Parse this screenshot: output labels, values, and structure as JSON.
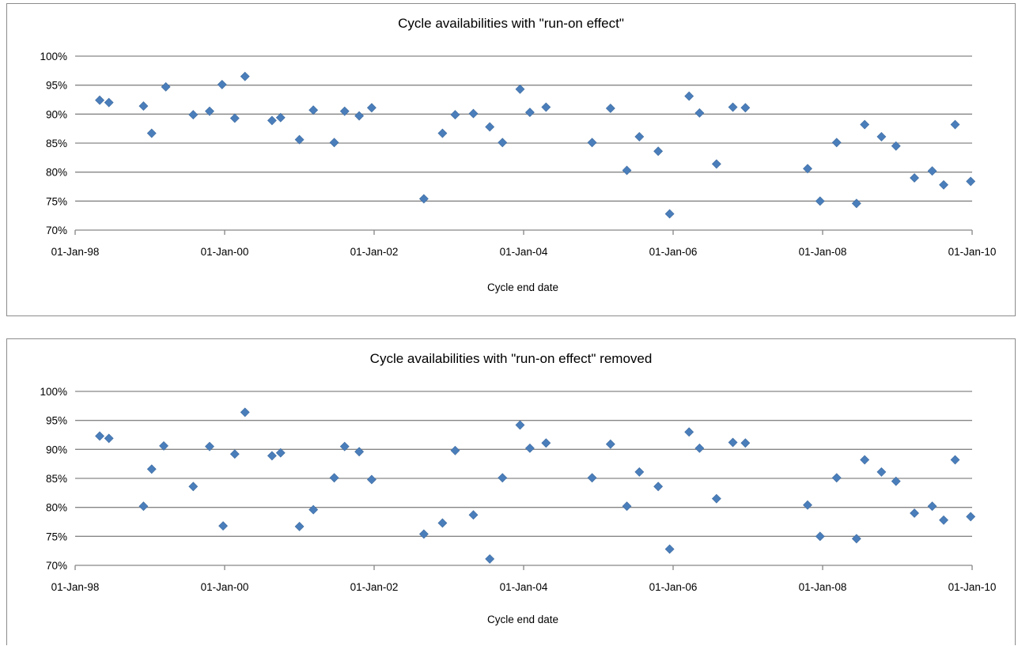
{
  "chart_data": [
    {
      "type": "scatter",
      "title": "Cycle availabilities with \"run-on effect\"",
      "xlabel": "Cycle end date",
      "ylabel": "",
      "xlim": [
        "1998-01-01",
        "2010-01-01"
      ],
      "ylim": [
        0.7,
        1.0
      ],
      "y_ticks": [
        "70%",
        "75%",
        "80%",
        "85%",
        "90%",
        "95%",
        "100%"
      ],
      "x_ticks": [
        "01-Jan-98",
        "01-Jan-00",
        "01-Jan-02",
        "01-Jan-04",
        "01-Jan-06",
        "01-Jan-08",
        "01-Jan-10"
      ],
      "grid": "horizontal",
      "legend": "none",
      "color": "#4a7ebb",
      "points": [
        {
          "x": "1998-05-01",
          "y": 0.924
        },
        {
          "x": "1998-06-15",
          "y": 0.92
        },
        {
          "x": "1998-12-01",
          "y": 0.914
        },
        {
          "x": "1999-01-10",
          "y": 0.867
        },
        {
          "x": "1999-03-20",
          "y": 0.947
        },
        {
          "x": "1999-08-01",
          "y": 0.899
        },
        {
          "x": "1999-10-20",
          "y": 0.905
        },
        {
          "x": "1999-12-20",
          "y": 0.951
        },
        {
          "x": "2000-02-20",
          "y": 0.893
        },
        {
          "x": "2000-04-10",
          "y": 0.965
        },
        {
          "x": "2000-08-20",
          "y": 0.889
        },
        {
          "x": "2000-10-01",
          "y": 0.894
        },
        {
          "x": "2001-01-01",
          "y": 0.856
        },
        {
          "x": "2001-03-10",
          "y": 0.907
        },
        {
          "x": "2001-06-20",
          "y": 0.851
        },
        {
          "x": "2001-08-10",
          "y": 0.905
        },
        {
          "x": "2001-10-20",
          "y": 0.897
        },
        {
          "x": "2001-12-20",
          "y": 0.911
        },
        {
          "x": "2002-09-01",
          "y": 0.754
        },
        {
          "x": "2002-12-01",
          "y": 0.867
        },
        {
          "x": "2003-02-01",
          "y": 0.899
        },
        {
          "x": "2003-05-01",
          "y": 0.901
        },
        {
          "x": "2003-07-20",
          "y": 0.878
        },
        {
          "x": "2003-09-20",
          "y": 0.851
        },
        {
          "x": "2003-12-15",
          "y": 0.943
        },
        {
          "x": "2004-02-01",
          "y": 0.903
        },
        {
          "x": "2004-04-20",
          "y": 0.912
        },
        {
          "x": "2004-12-01",
          "y": 0.851
        },
        {
          "x": "2005-03-01",
          "y": 0.91
        },
        {
          "x": "2005-05-20",
          "y": 0.803
        },
        {
          "x": "2005-07-20",
          "y": 0.861
        },
        {
          "x": "2005-10-20",
          "y": 0.836
        },
        {
          "x": "2005-12-15",
          "y": 0.728
        },
        {
          "x": "2006-03-20",
          "y": 0.931
        },
        {
          "x": "2006-05-10",
          "y": 0.902
        },
        {
          "x": "2006-08-01",
          "y": 0.814
        },
        {
          "x": "2006-10-20",
          "y": 0.912
        },
        {
          "x": "2006-12-20",
          "y": 0.911
        },
        {
          "x": "2007-10-20",
          "y": 0.806
        },
        {
          "x": "2007-12-20",
          "y": 0.75
        },
        {
          "x": "2008-03-10",
          "y": 0.851
        },
        {
          "x": "2008-06-15",
          "y": 0.746
        },
        {
          "x": "2008-07-25",
          "y": 0.882
        },
        {
          "x": "2008-10-15",
          "y": 0.861
        },
        {
          "x": "2008-12-25",
          "y": 0.845
        },
        {
          "x": "2009-03-25",
          "y": 0.79
        },
        {
          "x": "2009-06-20",
          "y": 0.802
        },
        {
          "x": "2009-08-15",
          "y": 0.778
        },
        {
          "x": "2009-10-10",
          "y": 0.882
        },
        {
          "x": "2009-12-25",
          "y": 0.784
        }
      ]
    },
    {
      "type": "scatter",
      "title": "Cycle availabilities with \"run-on effect\" removed",
      "xlabel": "Cycle end date",
      "ylabel": "",
      "xlim": [
        "1998-01-01",
        "2010-01-01"
      ],
      "ylim": [
        0.7,
        1.0
      ],
      "y_ticks": [
        "70%",
        "75%",
        "80%",
        "85%",
        "90%",
        "95%",
        "100%"
      ],
      "x_ticks": [
        "01-Jan-98",
        "01-Jan-00",
        "01-Jan-02",
        "01-Jan-04",
        "01-Jan-06",
        "01-Jan-08",
        "01-Jan-10"
      ],
      "grid": "horizontal",
      "legend": "none",
      "color": "#4a7ebb",
      "points": [
        {
          "x": "1998-05-01",
          "y": 0.923
        },
        {
          "x": "1998-06-15",
          "y": 0.919
        },
        {
          "x": "1998-12-01",
          "y": 0.802
        },
        {
          "x": "1999-01-10",
          "y": 0.866
        },
        {
          "x": "1999-03-10",
          "y": 0.906
        },
        {
          "x": "1999-08-01",
          "y": 0.836
        },
        {
          "x": "1999-10-20",
          "y": 0.905
        },
        {
          "x": "1999-12-25",
          "y": 0.768
        },
        {
          "x": "2000-02-20",
          "y": 0.892
        },
        {
          "x": "2000-04-10",
          "y": 0.964
        },
        {
          "x": "2000-08-20",
          "y": 0.889
        },
        {
          "x": "2000-10-01",
          "y": 0.894
        },
        {
          "x": "2001-01-01",
          "y": 0.767
        },
        {
          "x": "2001-03-10",
          "y": 0.796
        },
        {
          "x": "2001-06-20",
          "y": 0.851
        },
        {
          "x": "2001-08-10",
          "y": 0.905
        },
        {
          "x": "2001-10-20",
          "y": 0.896
        },
        {
          "x": "2001-12-20",
          "y": 0.848
        },
        {
          "x": "2002-09-01",
          "y": 0.754
        },
        {
          "x": "2002-12-01",
          "y": 0.773
        },
        {
          "x": "2003-02-01",
          "y": 0.898
        },
        {
          "x": "2003-05-01",
          "y": 0.787
        },
        {
          "x": "2003-07-20",
          "y": 0.711
        },
        {
          "x": "2003-09-20",
          "y": 0.851
        },
        {
          "x": "2003-12-15",
          "y": 0.942
        },
        {
          "x": "2004-02-01",
          "y": 0.902
        },
        {
          "x": "2004-04-20",
          "y": 0.911
        },
        {
          "x": "2004-12-01",
          "y": 0.851
        },
        {
          "x": "2005-03-01",
          "y": 0.909
        },
        {
          "x": "2005-05-20",
          "y": 0.802
        },
        {
          "x": "2005-07-20",
          "y": 0.861
        },
        {
          "x": "2005-10-20",
          "y": 0.836
        },
        {
          "x": "2005-12-15",
          "y": 0.728
        },
        {
          "x": "2006-03-20",
          "y": 0.93
        },
        {
          "x": "2006-05-10",
          "y": 0.902
        },
        {
          "x": "2006-08-01",
          "y": 0.815
        },
        {
          "x": "2006-10-20",
          "y": 0.912
        },
        {
          "x": "2006-12-20",
          "y": 0.911
        },
        {
          "x": "2007-10-20",
          "y": 0.804
        },
        {
          "x": "2007-12-20",
          "y": 0.75
        },
        {
          "x": "2008-03-10",
          "y": 0.851
        },
        {
          "x": "2008-06-15",
          "y": 0.746
        },
        {
          "x": "2008-07-25",
          "y": 0.882
        },
        {
          "x": "2008-10-15",
          "y": 0.861
        },
        {
          "x": "2008-12-25",
          "y": 0.845
        },
        {
          "x": "2009-03-25",
          "y": 0.79
        },
        {
          "x": "2009-06-20",
          "y": 0.802
        },
        {
          "x": "2009-08-15",
          "y": 0.778
        },
        {
          "x": "2009-10-10",
          "y": 0.882
        },
        {
          "x": "2009-12-25",
          "y": 0.784
        }
      ]
    }
  ]
}
